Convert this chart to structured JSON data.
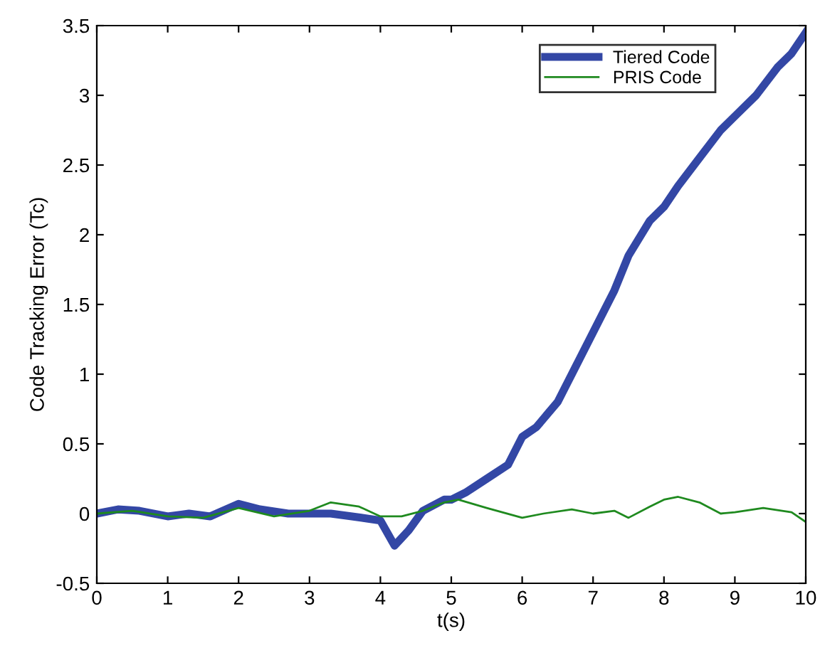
{
  "chart_data": {
    "type": "line",
    "xlabel": "t(s)",
    "ylabel": "Code Tracking Error (Tc)",
    "xlim": [
      0,
      10
    ],
    "ylim": [
      -0.5,
      3.5
    ],
    "xticks": [
      0,
      1,
      2,
      3,
      4,
      5,
      6,
      7,
      8,
      9,
      10
    ],
    "yticks": [
      -0.5,
      0,
      0.5,
      1,
      1.5,
      2,
      2.5,
      3,
      3.5
    ],
    "grid": false,
    "legend": "top right",
    "marker": "none",
    "series": [
      {
        "name": "Tiered Code",
        "color": "#3347a5",
        "x": [
          0,
          0.3,
          0.6,
          1.0,
          1.3,
          1.6,
          2.0,
          2.3,
          2.7,
          3.0,
          3.3,
          3.6,
          4.0,
          4.2,
          4.4,
          4.6,
          4.9,
          5.0,
          5.2,
          5.5,
          5.8,
          6.0,
          6.2,
          6.5,
          6.8,
          7.0,
          7.3,
          7.5,
          7.8,
          8.0,
          8.2,
          8.5,
          8.8,
          9.0,
          9.3,
          9.6,
          9.8,
          10
        ],
        "values": [
          0,
          0.03,
          0.02,
          -0.02,
          0.0,
          -0.02,
          0.07,
          0.03,
          0.0,
          0.0,
          0.0,
          -0.02,
          -0.05,
          -0.23,
          -0.12,
          0.02,
          0.1,
          0.1,
          0.15,
          0.25,
          0.35,
          0.55,
          0.62,
          0.8,
          1.1,
          1.3,
          1.6,
          1.85,
          2.1,
          2.2,
          2.35,
          2.55,
          2.75,
          2.85,
          3.0,
          3.2,
          3.3,
          3.45
        ]
      },
      {
        "name": "PRIS Code",
        "color": "#1f8a1f",
        "x": [
          0,
          0.5,
          1,
          1.5,
          2,
          2.5,
          3,
          3.3,
          3.7,
          4.0,
          4.3,
          4.6,
          4.9,
          5.1,
          5.5,
          6.0,
          6.3,
          6.7,
          7.0,
          7.3,
          7.5,
          7.8,
          8.0,
          8.2,
          8.5,
          8.8,
          9.0,
          9.4,
          9.8,
          10
        ],
        "values": [
          0,
          0.02,
          -0.02,
          -0.03,
          0.04,
          -0.02,
          0.02,
          0.08,
          0.05,
          -0.02,
          -0.02,
          0.02,
          0.08,
          0.1,
          0.04,
          -0.03,
          0.0,
          0.03,
          0.0,
          0.02,
          -0.03,
          0.05,
          0.1,
          0.12,
          0.08,
          0.0,
          0.01,
          0.04,
          0.01,
          -0.06
        ]
      }
    ]
  }
}
